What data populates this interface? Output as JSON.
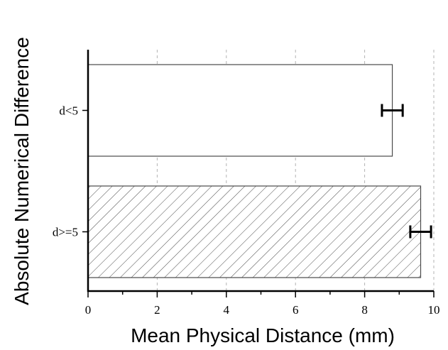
{
  "chart_data": {
    "type": "bar",
    "orientation": "horizontal",
    "categories": [
      "d<5",
      "d>=5"
    ],
    "values": [
      8.8,
      9.62
    ],
    "error": [
      0.3,
      0.3
    ],
    "fills": [
      "none",
      "hatched"
    ],
    "xlabel": "Mean Physical Distance (mm)",
    "ylabel": "Absolute Numerical Difference",
    "xlim": [
      0,
      10
    ],
    "xticks": [
      0,
      2,
      4,
      6,
      8,
      10
    ],
    "grid": "vertical-dashed",
    "colors": {
      "bar_stroke": "#4a4a4a",
      "hatch": "#4a4a4a",
      "grid": "#b3b3b3",
      "axis": "#000000"
    }
  }
}
